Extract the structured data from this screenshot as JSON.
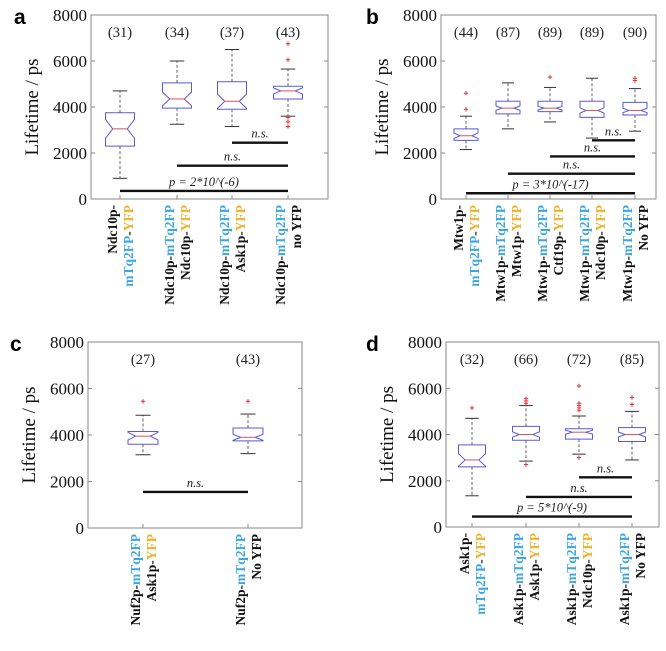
{
  "colors": {
    "k": "#111111",
    "b": "#3ba6e1",
    "y": "#f0b12b",
    "box": "#5a5ad8",
    "median": "#e0505a",
    "outlier": "#e03030"
  },
  "chart_data": [
    {
      "type": "box",
      "panel": "a",
      "ylabel": "Lifetime / ps",
      "ylim": [
        0,
        8000
      ],
      "yticks": [
        "0",
        "2000",
        "4000",
        "6000",
        "8000"
      ],
      "categories": [
        [
          [
            [
              "Ndc10p-",
              "k"
            ]
          ],
          [
            [
              "mTq2FP",
              "b"
            ],
            [
              "-",
              "k"
            ],
            [
              "YFP",
              "y"
            ]
          ]
        ],
        [
          [
            [
              "Ndc10p-",
              "k"
            ],
            [
              "mTq2FP",
              "b"
            ]
          ],
          [
            [
              "Ndc10p-",
              "k"
            ],
            [
              "YFP",
              "y"
            ]
          ]
        ],
        [
          [
            [
              "Ndc10p-",
              "k"
            ],
            [
              "mTq2FP",
              "b"
            ]
          ],
          [
            [
              "Ask1p-",
              "k"
            ],
            [
              "YFP",
              "y"
            ]
          ]
        ],
        [
          [
            [
              "Ndc10p-",
              "k"
            ],
            [
              "mTq2FP",
              "b"
            ]
          ],
          [
            [
              "no YFP",
              "k"
            ]
          ]
        ]
      ],
      "n_labels": [
        "(31)",
        "(34)",
        "(37)",
        "(43)"
      ],
      "n": [
        31,
        34,
        37,
        43
      ],
      "boxes": [
        {
          "whisker_low": 900,
          "q1": 2300,
          "median": 3050,
          "q3": 3750,
          "whisker_high": 4700,
          "outliers": []
        },
        {
          "whisker_low": 3250,
          "q1": 3950,
          "median": 4350,
          "q3": 5050,
          "whisker_high": 6000,
          "outliers": []
        },
        {
          "whisker_low": 3150,
          "q1": 3900,
          "median": 4250,
          "q3": 5100,
          "whisker_high": 6500,
          "outliers": []
        },
        {
          "whisker_low": 3600,
          "q1": 4350,
          "median": 4700,
          "q3": 4900,
          "whisker_high": 5650,
          "outliers": [
            6750,
            6050,
            3550,
            3350,
            3150
          ]
        }
      ],
      "significance": [
        {
          "from": 3,
          "to": 4,
          "y": 2450,
          "label": "n.s."
        },
        {
          "from": 2,
          "to": 4,
          "y": 1450,
          "label": "n.s."
        },
        {
          "from": 1,
          "to": 4,
          "y": 350,
          "label": "p = 2*10^(-6)"
        }
      ]
    },
    {
      "type": "box",
      "panel": "b",
      "ylabel": "Lifetime / ps",
      "ylim": [
        0,
        8000
      ],
      "yticks": [
        "0",
        "2000",
        "4000",
        "6000",
        "8000"
      ],
      "categories": [
        [
          [
            [
              "Mtw1p-",
              "k"
            ]
          ],
          [
            [
              "mTq2FP",
              "b"
            ],
            [
              "-",
              "k"
            ],
            [
              "YFP",
              "y"
            ]
          ]
        ],
        [
          [
            [
              "Mtw1p-",
              "k"
            ],
            [
              "mTq2FP",
              "b"
            ]
          ],
          [
            [
              "Mtw1p-",
              "k"
            ],
            [
              "YFP",
              "y"
            ]
          ]
        ],
        [
          [
            [
              "Mtw1p-",
              "k"
            ],
            [
              "mTq2FP",
              "b"
            ]
          ],
          [
            [
              "Ctf19p-",
              "k"
            ],
            [
              "YFP",
              "y"
            ]
          ]
        ],
        [
          [
            [
              "Mtw1p-",
              "k"
            ],
            [
              "mTq2FP",
              "b"
            ]
          ],
          [
            [
              "Ndc10p-",
              "k"
            ],
            [
              "YFP",
              "y"
            ]
          ]
        ],
        [
          [
            [
              "Mtw1p-",
              "k"
            ],
            [
              "mTq2FP",
              "b"
            ]
          ],
          [
            [
              "No YFP",
              "k"
            ]
          ]
        ]
      ],
      "n_labels": [
        "(44)",
        "(87)",
        "(89)",
        "(89)",
        "(90)"
      ],
      "n": [
        44,
        87,
        89,
        89,
        90
      ],
      "boxes": [
        {
          "whisker_low": 2150,
          "q1": 2550,
          "median": 2750,
          "q3": 3050,
          "whisker_high": 3600,
          "outliers": [
            4600,
            3900
          ]
        },
        {
          "whisker_low": 3050,
          "q1": 3700,
          "median": 3950,
          "q3": 4250,
          "whisker_high": 5050,
          "outliers": []
        },
        {
          "whisker_low": 3350,
          "q1": 3800,
          "median": 3950,
          "q3": 4250,
          "whisker_high": 4850,
          "outliers": [
            5300
          ]
        },
        {
          "whisker_low": 2650,
          "q1": 3550,
          "median": 3850,
          "q3": 4250,
          "whisker_high": 5250,
          "outliers": []
        },
        {
          "whisker_low": 2950,
          "q1": 3650,
          "median": 3850,
          "q3": 4200,
          "whisker_high": 4800,
          "outliers": [
            5150,
            5250
          ]
        }
      ],
      "significance": [
        {
          "from": 4,
          "to": 5,
          "y": 2550,
          "label": "n.s."
        },
        {
          "from": 3,
          "to": 5,
          "y": 1850,
          "label": "n.s."
        },
        {
          "from": 2,
          "to": 5,
          "y": 1100,
          "label": "n.s."
        },
        {
          "from": 1,
          "to": 5,
          "y": 250,
          "label": "p = 3*10^(-17)"
        }
      ]
    },
    {
      "type": "box",
      "panel": "c",
      "ylabel": "Lifetime / ps",
      "ylim": [
        0,
        8000
      ],
      "yticks": [
        "0",
        "2000",
        "4000",
        "6000",
        "8000"
      ],
      "categories": [
        [
          [
            [
              "Nuf2p-",
              "k"
            ],
            [
              "mTq2FP",
              "b"
            ]
          ],
          [
            [
              "Ask1p-",
              "k"
            ],
            [
              "YFP",
              "y"
            ]
          ]
        ],
        [
          [
            [
              "Nuf2p-",
              "k"
            ],
            [
              "mTq2FP",
              "b"
            ]
          ],
          [
            [
              "No YFP",
              "k"
            ]
          ]
        ]
      ],
      "n_labels": [
        "(27)",
        "(43)"
      ],
      "n": [
        27,
        43
      ],
      "boxes": [
        {
          "whisker_low": 3150,
          "q1": 3600,
          "median": 3950,
          "q3": 4150,
          "whisker_high": 4850,
          "outliers": [
            5450
          ]
        },
        {
          "whisker_low": 3200,
          "q1": 3750,
          "median": 3900,
          "q3": 4300,
          "whisker_high": 4900,
          "outliers": [
            5450
          ]
        }
      ],
      "significance": [
        {
          "from": 1,
          "to": 2,
          "y": 1550,
          "label": "n.s."
        }
      ]
    },
    {
      "type": "box",
      "panel": "d",
      "ylabel": "Lifetime / ps",
      "ylim": [
        0,
        8000
      ],
      "yticks": [
        "0",
        "2000",
        "4000",
        "6000",
        "8000"
      ],
      "categories": [
        [
          [
            [
              "Ask1p-",
              "k"
            ]
          ],
          [
            [
              "mTq2FP",
              "b"
            ],
            [
              "-",
              "k"
            ],
            [
              "YFP",
              "y"
            ]
          ]
        ],
        [
          [
            [
              "Ask1p-",
              "k"
            ],
            [
              "mTq2FP",
              "b"
            ]
          ],
          [
            [
              "Ask1p-",
              "k"
            ],
            [
              "YFP",
              "y"
            ]
          ]
        ],
        [
          [
            [
              "Ask1p-",
              "k"
            ],
            [
              "mTq2FP",
              "b"
            ]
          ],
          [
            [
              "Ndc10p-",
              "k"
            ],
            [
              "YFP",
              "y"
            ]
          ]
        ],
        [
          [
            [
              "Ask1p-",
              "k"
            ],
            [
              "mTq2FP",
              "b"
            ]
          ],
          [
            [
              "No YFP",
              "k"
            ]
          ]
        ]
      ],
      "n_labels": [
        "(32)",
        "(66)",
        "(72)",
        "(85)"
      ],
      "n": [
        32,
        66,
        72,
        85
      ],
      "boxes": [
        {
          "whisker_low": 1350,
          "q1": 2600,
          "median": 2900,
          "q3": 3550,
          "whisker_high": 4700,
          "outliers": [
            5150
          ]
        },
        {
          "whisker_low": 2850,
          "q1": 3750,
          "median": 4000,
          "q3": 4350,
          "whisker_high": 5250,
          "outliers": [
            2700,
            5350,
            5450,
            5550
          ]
        },
        {
          "whisker_low": 3150,
          "q1": 3800,
          "median": 4100,
          "q3": 4250,
          "whisker_high": 4800,
          "outliers": [
            3000,
            6100,
            5050,
            5150,
            5250,
            5350
          ]
        },
        {
          "whisker_low": 2900,
          "q1": 3700,
          "median": 4000,
          "q3": 4300,
          "whisker_high": 5000,
          "outliers": [
            5300,
            5600
          ]
        }
      ],
      "significance": [
        {
          "from": 3,
          "to": 4,
          "y": 2150,
          "label": "n.s."
        },
        {
          "from": 2,
          "to": 4,
          "y": 1300,
          "label": "n.s."
        },
        {
          "from": 1,
          "to": 4,
          "y": 450,
          "label": "p = 5*10^(-9)"
        }
      ]
    }
  ]
}
